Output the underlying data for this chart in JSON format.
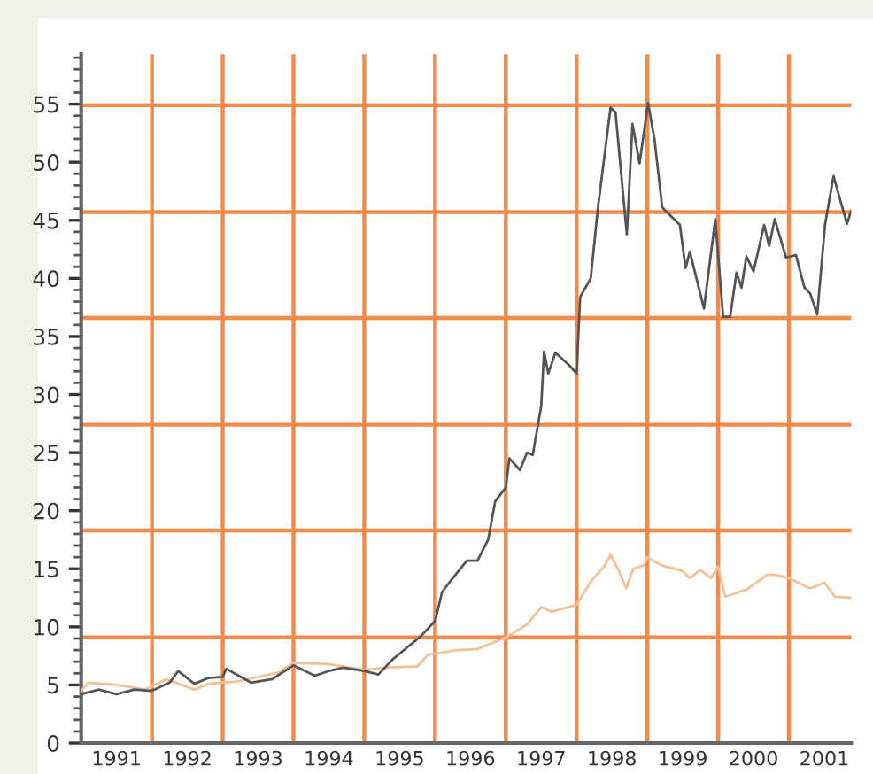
{
  "chart_data": {
    "type": "line",
    "line_style": "solid",
    "marker": "none",
    "grid": false,
    "legend": false,
    "xlim": [
      1991,
      2001.88
    ],
    "ylim": [
      0,
      59.3
    ],
    "xticks": [
      {
        "value": 1991.5,
        "label": "1991"
      },
      {
        "value": 1992.5,
        "label": "1992"
      },
      {
        "value": 1993.5,
        "label": "1993"
      },
      {
        "value": 1994.5,
        "label": "1994"
      },
      {
        "value": 1995.5,
        "label": "1995"
      },
      {
        "value": 1996.5,
        "label": "1996"
      },
      {
        "value": 1997.5,
        "label": "1997"
      },
      {
        "value": 1998.5,
        "label": "1998"
      },
      {
        "value": 1999.5,
        "label": "1999"
      },
      {
        "value": 2000.5,
        "label": "2000"
      },
      {
        "value": 2001.5,
        "label": "2001"
      }
    ],
    "yticks": [
      0,
      {
        "value": 1,
        "label": null
      },
      {
        "value": 2,
        "label": null
      },
      {
        "value": 3,
        "label": null
      },
      {
        "value": 4,
        "label": null
      },
      5,
      {
        "value": 6,
        "label": null
      },
      {
        "value": 7,
        "label": null
      },
      {
        "value": 8,
        "label": null
      },
      {
        "value": 9,
        "label": null
      },
      10,
      {
        "value": 11,
        "label": null
      },
      {
        "value": 12,
        "label": null
      },
      {
        "value": 13,
        "label": null
      },
      {
        "value": 14,
        "label": null
      },
      15,
      {
        "value": 16,
        "label": null
      },
      {
        "value": 17,
        "label": null
      },
      {
        "value": 18,
        "label": null
      },
      {
        "value": 19,
        "label": null
      },
      20,
      {
        "value": 21,
        "label": null
      },
      {
        "value": 22,
        "label": null
      },
      {
        "value": 23,
        "label": null
      },
      {
        "value": 24,
        "label": null
      },
      25,
      {
        "value": 26,
        "label": null
      },
      {
        "value": 27,
        "label": null
      },
      {
        "value": 28,
        "label": null
      },
      {
        "value": 29,
        "label": null
      },
      30,
      {
        "value": 31,
        "label": null
      },
      {
        "value": 32,
        "label": null
      },
      {
        "value": 33,
        "label": null
      },
      {
        "value": 34,
        "label": null
      },
      35,
      {
        "value": 36,
        "label": null
      },
      {
        "value": 37,
        "label": null
      },
      {
        "value": 38,
        "label": null
      },
      {
        "value": 39,
        "label": null
      },
      40,
      {
        "value": 41,
        "label": null
      },
      {
        "value": 42,
        "label": null
      },
      {
        "value": 43,
        "label": null
      },
      {
        "value": 44,
        "label": null
      },
      45,
      {
        "value": 46,
        "label": null
      },
      {
        "value": 47,
        "label": null
      },
      {
        "value": 48,
        "label": null
      },
      {
        "value": 49,
        "label": null
      },
      50,
      {
        "value": 51,
        "label": null
      },
      {
        "value": 52,
        "label": null
      },
      {
        "value": 53,
        "label": null
      },
      {
        "value": 54,
        "label": null
      },
      55,
      {
        "value": 56,
        "label": null
      },
      {
        "value": 57,
        "label": null
      },
      {
        "value": 58,
        "label": null
      },
      {
        "value": 59,
        "label": null
      }
    ],
    "ref_lines": [
      {
        "axis": "x",
        "value": 1992,
        "color": "#f4894a"
      },
      {
        "axis": "x",
        "value": 1993,
        "color": "#f4894a"
      },
      {
        "axis": "x",
        "value": 1994,
        "color": "#f4894a"
      },
      {
        "axis": "x",
        "value": 1995,
        "color": "#f4894a"
      },
      {
        "axis": "x",
        "value": 1996,
        "color": "#f4894a"
      },
      {
        "axis": "x",
        "value": 1997,
        "color": "#f4894a"
      },
      {
        "axis": "x",
        "value": 1998,
        "color": "#f4894a"
      },
      {
        "axis": "x",
        "value": 1999,
        "color": "#f4894a"
      },
      {
        "axis": "x",
        "value": 2000,
        "color": "#f4894a"
      },
      {
        "axis": "x",
        "value": 2001,
        "color": "#f4894a"
      },
      {
        "axis": "y",
        "value": 9.1,
        "color": "#f4894a"
      },
      {
        "axis": "y",
        "value": 18.3,
        "color": "#f4894a"
      },
      {
        "axis": "y",
        "value": 27.4,
        "color": "#f4894a"
      },
      {
        "axis": "y",
        "value": 36.6,
        "color": "#f4894a"
      },
      {
        "axis": "y",
        "value": 45.7,
        "color": "#f4894a"
      },
      {
        "axis": "y",
        "value": 54.9,
        "color": "#f4894a"
      }
    ],
    "series": [
      {
        "color": "#f6bf94",
        "x": [
          1991.0,
          1991.1,
          1991.5,
          1991.9,
          1992.2,
          1992.6,
          1992.8,
          1993.2,
          1993.5,
          1993.8,
          1994.0,
          1994.5,
          1995.0,
          1995.3,
          1995.75,
          1995.9,
          1996.3,
          1996.6,
          1997.0,
          1997.3,
          1997.5,
          1997.65,
          1998.0,
          1998.2,
          1998.4,
          1998.48,
          1998.6,
          1998.7,
          1998.8,
          1998.95,
          1999.0,
          1999.2,
          1999.5,
          1999.6,
          1999.75,
          1999.9,
          2000.0,
          2000.1,
          2000.4,
          2000.7,
          2000.8,
          2001.0,
          2001.3,
          2001.5,
          2001.65,
          2001.88
        ],
        "values": [
          4.5,
          5.2,
          5.0,
          4.6,
          5.5,
          4.6,
          5.1,
          5.3,
          5.7,
          6.1,
          6.9,
          6.8,
          6.3,
          6.5,
          6.6,
          7.6,
          8.0,
          8.1,
          9.1,
          10.2,
          11.7,
          11.3,
          11.9,
          13.9,
          15.3,
          16.2,
          14.8,
          13.3,
          15.0,
          15.3,
          16.0,
          15.3,
          14.8,
          14.2,
          14.9,
          14.2,
          15.2,
          12.6,
          13.2,
          14.5,
          14.5,
          14.2,
          13.3,
          13.8,
          12.6,
          12.5
        ]
      },
      {
        "color": "#555555",
        "x": [
          1991.0,
          1991.25,
          1991.5,
          1991.75,
          1992.0,
          1992.25,
          1992.37,
          1992.6,
          1992.8,
          1993.0,
          1993.05,
          1993.4,
          1993.7,
          1994.0,
          1994.3,
          1994.5,
          1994.7,
          1995.0,
          1995.2,
          1995.4,
          1995.6,
          1995.8,
          1996.0,
          1996.1,
          1996.25,
          1996.45,
          1996.6,
          1996.75,
          1996.85,
          1997.0,
          1997.05,
          1997.2,
          1997.3,
          1997.38,
          1997.5,
          1997.54,
          1997.6,
          1997.7,
          1997.9,
          1998.0,
          1998.05,
          1998.2,
          1998.3,
          1998.48,
          1998.55,
          1998.71,
          1998.79,
          1998.89,
          1999.01,
          1999.1,
          1999.21,
          1999.46,
          1999.54,
          1999.6,
          1999.8,
          1999.96,
          2000.07,
          2000.17,
          2000.26,
          2000.33,
          2000.4,
          2000.5,
          2000.65,
          2000.72,
          2000.8,
          2000.96,
          2001.1,
          2001.22,
          2001.3,
          2001.4,
          2001.51,
          2001.63,
          2001.82,
          2001.88
        ],
        "values": [
          4.2,
          4.6,
          4.2,
          4.6,
          4.5,
          5.2,
          6.2,
          5.1,
          5.6,
          5.7,
          6.4,
          5.2,
          5.5,
          6.7,
          5.8,
          6.2,
          6.5,
          6.2,
          5.9,
          7.2,
          8.2,
          9.2,
          10.5,
          13.0,
          14.2,
          15.7,
          15.7,
          17.5,
          20.8,
          22.0,
          24.5,
          23.5,
          25.0,
          24.8,
          29.0,
          33.7,
          31.8,
          33.6,
          32.5,
          31.8,
          38.4,
          40.0,
          46.0,
          54.7,
          54.3,
          43.8,
          53.3,
          49.9,
          55.1,
          52.0,
          46.1,
          44.6,
          40.9,
          42.3,
          37.4,
          45.1,
          36.7,
          36.7,
          40.5,
          39.2,
          41.9,
          40.6,
          44.6,
          42.8,
          45.1,
          41.8,
          42.0,
          39.2,
          38.7,
          36.9,
          44.6,
          48.8,
          44.7,
          45.8
        ]
      }
    ]
  }
}
